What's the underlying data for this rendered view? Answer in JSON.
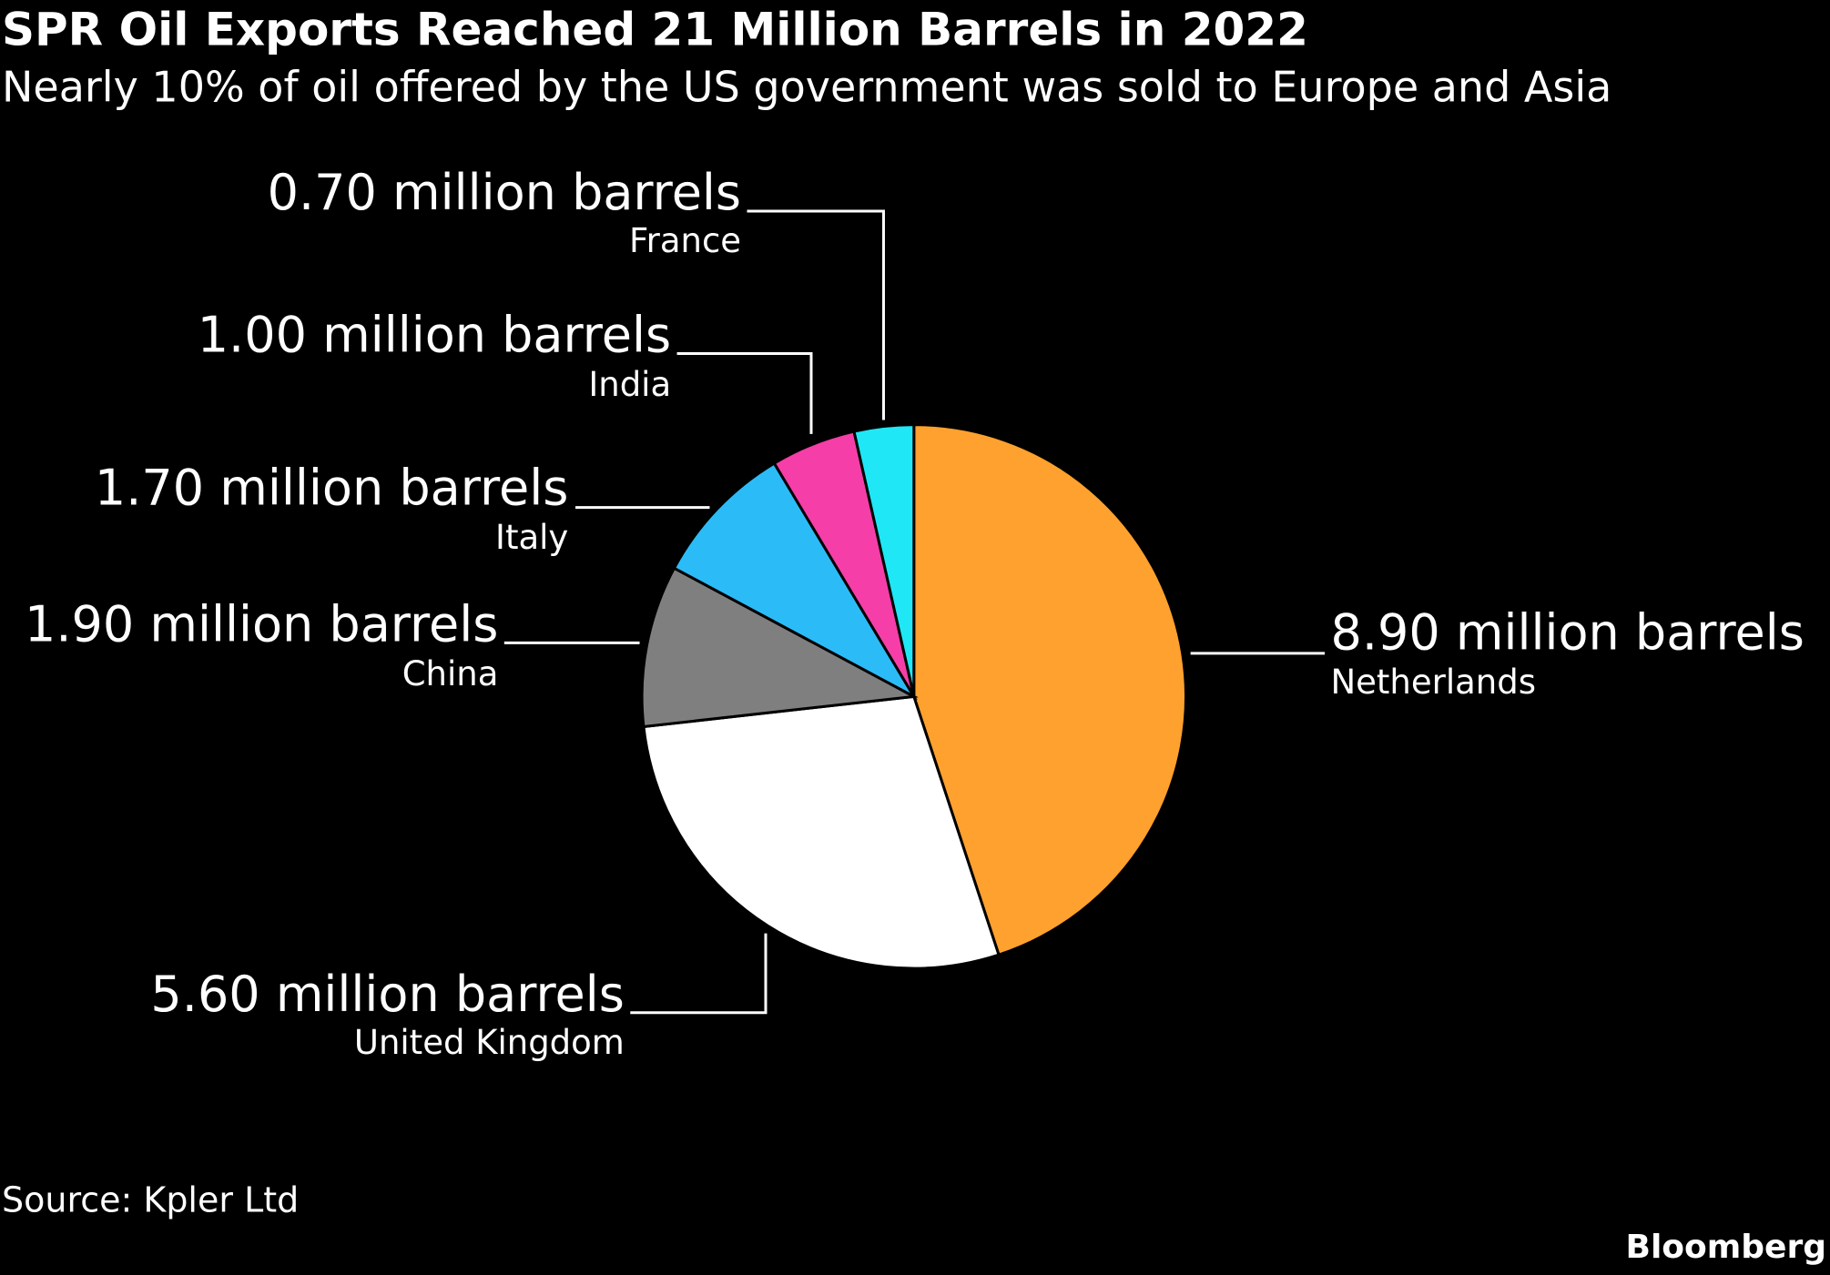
{
  "chart_data": {
    "type": "pie",
    "title": "SPR Oil Exports Reached 21 Million Barrels in 2022",
    "subtitle": "Nearly 10% of oil offered by the US government was sold to Europe and Asia",
    "categories": [
      "Netherlands",
      "United Kingdom",
      "China",
      "Italy",
      "India",
      "France"
    ],
    "values": [
      8.9,
      5.6,
      1.9,
      1.7,
      1.0,
      0.7
    ],
    "value_labels": [
      "8.90 million barrels",
      "5.60 million barrels",
      "1.90 million barrels",
      "1.70 million barrels",
      "1.00 million barrels",
      "0.70 million barrels"
    ],
    "colors": [
      "#ffa12e",
      "#ffffff",
      "#7f7f7f",
      "#2bbcf7",
      "#f53ea8",
      "#1fe7f6"
    ],
    "source": "Source: Kpler Ltd",
    "brand": "Bloomberg"
  }
}
